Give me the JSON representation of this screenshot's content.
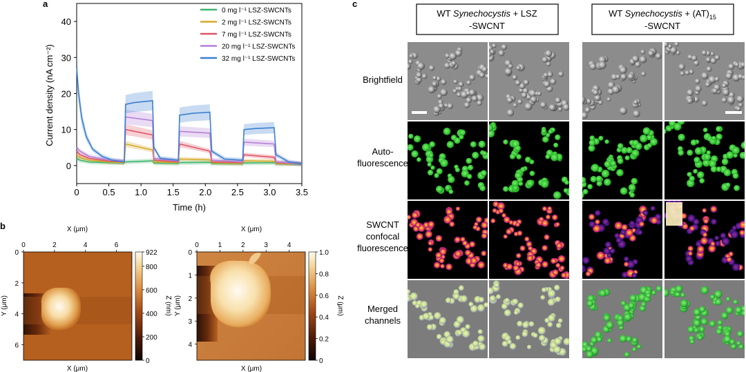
{
  "panel_letters": {
    "a": "a",
    "b": "b",
    "c": "c"
  },
  "chart_data": [
    {
      "type": "line",
      "xlabel": "Time (h)",
      "ylabel": "Current density (nA cm⁻²)",
      "xlim": [
        0,
        3.5
      ],
      "ylim": [
        -5,
        45
      ],
      "x_ticks": [
        0,
        0.5,
        1.0,
        1.5,
        2.0,
        2.5,
        3.0,
        3.5
      ],
      "x_tick_labels": [
        "0",
        "0.5",
        "1.0",
        "1.5",
        "2.0",
        "2.5",
        "3.0",
        "3.5"
      ],
      "y_ticks": [
        0,
        10,
        20,
        30,
        40
      ],
      "y_tick_labels": [
        "0",
        "10",
        "20",
        "30",
        "40"
      ],
      "legend_position": "top-right",
      "grid": false,
      "series": [
        {
          "name": "0 mg l⁻¹ LSZ-SWCNTs",
          "color": "#3fb56d",
          "x": [
            0,
            0.05,
            0.2,
            0.5,
            0.74,
            0.75,
            1.18,
            1.2,
            1.58,
            1.59,
            2.07,
            2.1,
            2.58,
            2.59,
            3.07,
            3.1,
            3.5
          ],
          "y": [
            2,
            1.5,
            1.0,
            0.8,
            0.7,
            1.0,
            1.3,
            0.7,
            0.6,
            0.8,
            0.9,
            0.6,
            0.5,
            0.7,
            0.8,
            0.5,
            0.4
          ]
        },
        {
          "name": "2 mg l⁻¹ LSZ-SWCNTs",
          "color": "#d4a92a",
          "x": [
            0,
            0.05,
            0.2,
            0.5,
            0.74,
            0.76,
            1.18,
            1.2,
            1.58,
            1.6,
            2.07,
            2.1,
            2.58,
            2.6,
            3.07,
            3.1,
            3.5
          ],
          "y": [
            3,
            2.2,
            1.5,
            1.0,
            0.8,
            6.0,
            4.3,
            1.0,
            0.8,
            1.8,
            1.6,
            0.8,
            0.6,
            1.3,
            1.2,
            0.6,
            0.5
          ]
        },
        {
          "name": "7 mg l⁻¹ LSZ-SWCNTs",
          "color": "#e05565",
          "x": [
            0,
            0.05,
            0.2,
            0.5,
            0.74,
            0.76,
            0.9,
            1.18,
            1.2,
            1.58,
            1.6,
            2.07,
            2.1,
            2.58,
            2.6,
            3.07,
            3.1,
            3.5
          ],
          "y": [
            4,
            3.0,
            2.0,
            1.2,
            1.0,
            10.0,
            9.5,
            8.5,
            1.5,
            1.0,
            6.0,
            4.0,
            1.0,
            0.8,
            3.0,
            2.3,
            0.8,
            0.5
          ]
        },
        {
          "name": "20 mg l⁻¹ LSZ-SWCNTs",
          "color": "#b57fd6",
          "x": [
            0,
            0.05,
            0.2,
            0.5,
            0.74,
            0.76,
            1.18,
            1.2,
            1.58,
            1.6,
            2.07,
            2.1,
            2.58,
            2.6,
            3.07,
            3.1,
            3.5
          ],
          "y": [
            5,
            4.0,
            2.5,
            1.5,
            1.2,
            13.5,
            12.5,
            2.0,
            1.2,
            9.5,
            9.0,
            1.5,
            1.0,
            6.5,
            6.0,
            1.0,
            0.5
          ]
        },
        {
          "name": "32 mg l⁻¹ LSZ-SWCNTs",
          "color": "#3b7fd0",
          "x": [
            0,
            0.03,
            0.08,
            0.15,
            0.25,
            0.4,
            0.55,
            0.74,
            0.76,
            0.9,
            1.18,
            1.2,
            1.3,
            1.58,
            1.6,
            1.8,
            2.07,
            2.1,
            2.3,
            2.58,
            2.6,
            2.8,
            3.07,
            3.1,
            3.3,
            3.5
          ],
          "y": [
            27,
            20,
            13,
            8,
            4.5,
            2.5,
            1.5,
            1.0,
            17,
            17.5,
            18,
            5,
            2,
            1.5,
            14,
            14.5,
            14.8,
            4,
            1.8,
            1.5,
            10,
            10.3,
            10.5,
            3,
            1,
            0.5
          ]
        }
      ]
    },
    {
      "type": "heatmap",
      "xlabel": "X (μm)",
      "ylabel": "Y (μm)",
      "zlabel": "Z (nm)",
      "x_ticks": [
        "0",
        "2",
        "4",
        "6"
      ],
      "y_ticks": [
        "0",
        "2",
        "4",
        "6"
      ],
      "color_ticks": [
        "922",
        "800",
        "600",
        "400",
        "200",
        "0"
      ],
      "color_range": [
        0,
        922
      ],
      "xlim": [
        0,
        7
      ],
      "ylim": [
        0,
        7
      ]
    },
    {
      "type": "heatmap",
      "xlabel": "X (μm)",
      "ylabel": "Y (μm)",
      "zlabel": "Z (μm)",
      "x_ticks": [
        "0",
        "1",
        "2",
        "3",
        "4"
      ],
      "y_ticks": [
        "0",
        "1",
        "2",
        "3",
        "4"
      ],
      "color_ticks": [
        "1.0",
        "0.8",
        "0.6",
        "0.4",
        "0.2",
        "0"
      ],
      "color_range": [
        0,
        1.0
      ],
      "xlim": [
        0,
        4.7
      ],
      "ylim": [
        0,
        4.7
      ]
    }
  ],
  "panel_c": {
    "column_headers": [
      {
        "prefix": "WT ",
        "italic": "Synechocystis",
        "suffix": " + LSZ",
        "line2": "-SWCNT"
      },
      {
        "prefix": "WT ",
        "italic": "Synechocystis",
        "suffix": " + (AT)",
        "subscript": "15",
        "line2": "-SWCNT"
      }
    ],
    "rows": [
      {
        "label_lines": [
          "Brightfield"
        ]
      },
      {
        "label_lines": [
          "Auto-",
          "fluorescence"
        ]
      },
      {
        "label_lines": [
          "SWCNT",
          "confocal",
          "fluorescence"
        ]
      },
      {
        "label_lines": [
          "Merged",
          "channels"
        ]
      }
    ]
  },
  "colors": {
    "afm_brown": "#b5601f",
    "afm_peak": "#fff6e0",
    "green_cells": "#35d035",
    "fire_low": "#2a0560",
    "fire_high": "#ffe15a"
  }
}
